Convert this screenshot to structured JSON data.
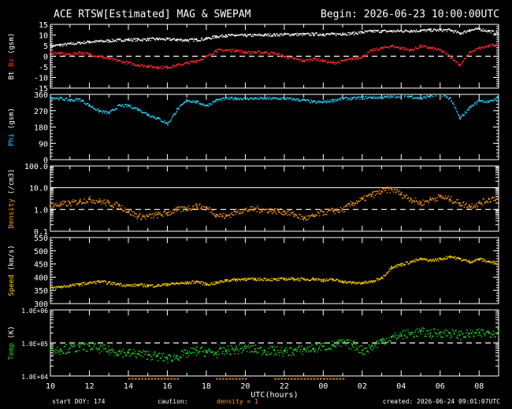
{
  "header": {
    "title": "ACE RTSW[Estimated] MAG & SWEPAM",
    "begin": "Begin: 2026-06-23 10:00:00UTC"
  },
  "footer": {
    "start_doy": "start DOY: 174",
    "caution": "caution:",
    "density_note": "density < 1",
    "created": "created: 2026-06-24 09:01:07UTC"
  },
  "colors": {
    "bt": "#ffffff",
    "bz": "#ff2a2a",
    "phi": "#2bd3ff",
    "density": "#ff9a1f",
    "speed": "#ffd200",
    "temp": "#22dd22",
    "axes": "#ffffff",
    "background": "#000000"
  },
  "chart_data": [
    {
      "type": "scatter",
      "panel": "mag",
      "ylabel_parts": [
        "Bt",
        "Bz",
        "(gsm)"
      ],
      "ylim": [
        -15,
        15
      ],
      "yticks": [
        "15",
        "10",
        "5",
        "0",
        "-5",
        "-10",
        "-15"
      ],
      "reference_line": 0,
      "x": [
        10,
        10.5,
        11,
        11.5,
        12,
        12.5,
        13,
        13.5,
        14,
        14.5,
        15,
        15.5,
        16,
        16.5,
        17,
        17.5,
        18,
        18.5,
        19,
        19.5,
        20,
        20.5,
        21,
        21.5,
        22,
        22.5,
        23,
        23.5,
        24,
        24.5,
        25,
        25.5,
        26,
        26.5,
        27,
        27.5,
        28,
        28.5,
        29,
        29.5,
        30,
        30.5,
        31,
        31.5,
        32,
        32.5,
        33
      ],
      "series": [
        {
          "name": "Bt",
          "values": [
            5,
            5.5,
            6,
            6.5,
            7,
            7.2,
            7.5,
            7.8,
            8,
            8,
            8.2,
            8.3,
            8.2,
            8,
            7.8,
            8,
            8.5,
            9.5,
            10,
            10,
            10,
            10.1,
            10.2,
            10.3,
            10.5,
            10.5,
            10.5,
            10.6,
            10.5,
            10.6,
            10.8,
            11,
            11.5,
            12,
            12,
            12,
            12.1,
            12.2,
            12.3,
            12.5,
            12.5,
            12.5,
            11,
            12.5,
            13,
            12,
            11
          ]
        },
        {
          "name": "Bz",
          "values": [
            2,
            1.5,
            1,
            2,
            1,
            0,
            -1,
            -2,
            -3,
            -4,
            -4.5,
            -5,
            -5,
            -4,
            -3,
            -2,
            0,
            3,
            3,
            3,
            2,
            2,
            2,
            1.5,
            0,
            -1,
            -2,
            -1,
            -2,
            -3,
            -2,
            -1,
            0,
            3,
            4,
            5,
            4,
            3,
            5,
            4,
            3,
            0,
            -4,
            2,
            4,
            5,
            6
          ]
        }
      ]
    },
    {
      "type": "scatter",
      "panel": "phi",
      "ylabel_parts": [
        "Phi",
        "(gsm)"
      ],
      "ylim": [
        0,
        360
      ],
      "yticks": [
        "360",
        "270",
        "180",
        "90",
        "0"
      ],
      "x": [
        10,
        10.5,
        11,
        11.5,
        12,
        12.5,
        13,
        13.5,
        14,
        14.5,
        15,
        15.5,
        16,
        16.5,
        17,
        17.5,
        18,
        18.5,
        19,
        19.5,
        20,
        20.5,
        21,
        21.5,
        22,
        22.5,
        23,
        23.5,
        24,
        24.5,
        25,
        25.5,
        26,
        26.5,
        27,
        27.5,
        28,
        28.5,
        29,
        29.5,
        30,
        30.5,
        31,
        31.5,
        32,
        32.5,
        33
      ],
      "series": [
        {
          "name": "Phi",
          "values": [
            345,
            340,
            330,
            335,
            300,
            270,
            260,
            300,
            300,
            280,
            250,
            230,
            200,
            280,
            330,
            320,
            300,
            330,
            340,
            340,
            340,
            340,
            340,
            340,
            340,
            335,
            330,
            320,
            320,
            330,
            340,
            340,
            345,
            345,
            345,
            350,
            355,
            350,
            340,
            355,
            360,
            340,
            230,
            290,
            330,
            320,
            350
          ]
        }
      ]
    },
    {
      "type": "scatter",
      "panel": "density",
      "ylabel_parts": [
        "Density",
        "(/cm3)"
      ],
      "ylog": true,
      "ylim": [
        0.1,
        100
      ],
      "yticks": [
        "100.0",
        "10.0",
        "1.0",
        "0.1"
      ],
      "reference_line": 1,
      "x": [
        10,
        10.5,
        11,
        11.5,
        12,
        12.5,
        13,
        13.5,
        14,
        14.5,
        15,
        15.5,
        16,
        16.5,
        17,
        17.5,
        18,
        18.5,
        19,
        19.5,
        20,
        20.5,
        21,
        21.5,
        22,
        22.5,
        23,
        23.5,
        24,
        24.5,
        25,
        25.5,
        26,
        26.5,
        27,
        27.5,
        28,
        28.5,
        29,
        29.5,
        30,
        30.5,
        31,
        31.5,
        32,
        32.5,
        33
      ],
      "series": [
        {
          "name": "Density",
          "values": [
            1.5,
            1.8,
            2,
            2.5,
            3,
            2.5,
            2,
            1.5,
            0.8,
            0.5,
            0.5,
            0.6,
            0.7,
            1,
            1.2,
            1.5,
            1.2,
            0.6,
            0.5,
            0.8,
            1,
            1.1,
            1,
            0.9,
            0.8,
            0.6,
            0.4,
            0.5,
            0.8,
            0.9,
            1,
            2,
            3,
            5,
            7,
            9,
            5,
            3,
            2,
            3,
            4,
            3,
            2,
            1.5,
            2,
            3,
            4
          ]
        }
      ]
    },
    {
      "type": "scatter",
      "panel": "speed",
      "ylabel_parts": [
        "Speed",
        "(km/s)"
      ],
      "ylim": [
        300,
        550
      ],
      "yticks": [
        "550",
        "500",
        "450",
        "400",
        "350",
        "300"
      ],
      "x": [
        10,
        10.5,
        11,
        11.5,
        12,
        12.5,
        13,
        13.5,
        14,
        14.5,
        15,
        15.5,
        16,
        16.5,
        17,
        17.5,
        18,
        18.5,
        19,
        19.5,
        20,
        20.5,
        21,
        21.5,
        22,
        22.5,
        23,
        23.5,
        24,
        24.5,
        25,
        25.5,
        26,
        26.5,
        27,
        27.5,
        28,
        28.5,
        29,
        29.5,
        30,
        30.5,
        31,
        31.5,
        32,
        32.5,
        33
      ],
      "series": [
        {
          "name": "Speed",
          "values": [
            360,
            365,
            370,
            375,
            380,
            385,
            380,
            375,
            370,
            372,
            370,
            370,
            375,
            378,
            380,
            385,
            375,
            380,
            390,
            392,
            395,
            393,
            395,
            392,
            395,
            395,
            393,
            395,
            390,
            392,
            385,
            380,
            380,
            385,
            400,
            440,
            450,
            460,
            470,
            465,
            470,
            480,
            470,
            460,
            470,
            460,
            455
          ]
        }
      ]
    },
    {
      "type": "scatter",
      "panel": "temp",
      "ylabel_parts": [
        "Temp",
        "(K)"
      ],
      "ylog": true,
      "ylim": [
        10000,
        1000000
      ],
      "yticks": [
        "1.0E+06",
        "1.0E+05",
        "1.0E+04"
      ],
      "reference_line": 100000,
      "x": [
        10,
        10.5,
        11,
        11.5,
        12,
        12.5,
        13,
        13.5,
        14,
        14.5,
        15,
        15.5,
        16,
        16.5,
        17,
        17.5,
        18,
        18.5,
        19,
        19.5,
        20,
        20.5,
        21,
        21.5,
        22,
        22.5,
        23,
        23.5,
        24,
        24.5,
        25,
        25.5,
        26,
        26.5,
        27,
        27.5,
        28,
        28.5,
        29,
        29.5,
        30,
        30.5,
        31,
        31.5,
        32,
        32.5,
        33
      ],
      "series": [
        {
          "name": "Temp",
          "values": [
            60000,
            65000,
            70000,
            75000,
            80000,
            70000,
            60000,
            55000,
            50000,
            48000,
            45000,
            40000,
            35000,
            40000,
            50000,
            60000,
            55000,
            50000,
            60000,
            65000,
            70000,
            65000,
            60000,
            60000,
            55000,
            60000,
            65000,
            70000,
            80000,
            90000,
            100000,
            90000,
            60000,
            80000,
            120000,
            150000,
            180000,
            200000,
            220000,
            200000,
            210000,
            200000,
            180000,
            190000,
            200000,
            210000,
            220000
          ]
        }
      ]
    }
  ],
  "x_axis": {
    "label": "UTC(hours)",
    "tick_labels": [
      "10",
      "12",
      "14",
      "16",
      "18",
      "20",
      "22",
      "00",
      "02",
      "04",
      "06",
      "08"
    ],
    "range": [
      10,
      33
    ]
  }
}
